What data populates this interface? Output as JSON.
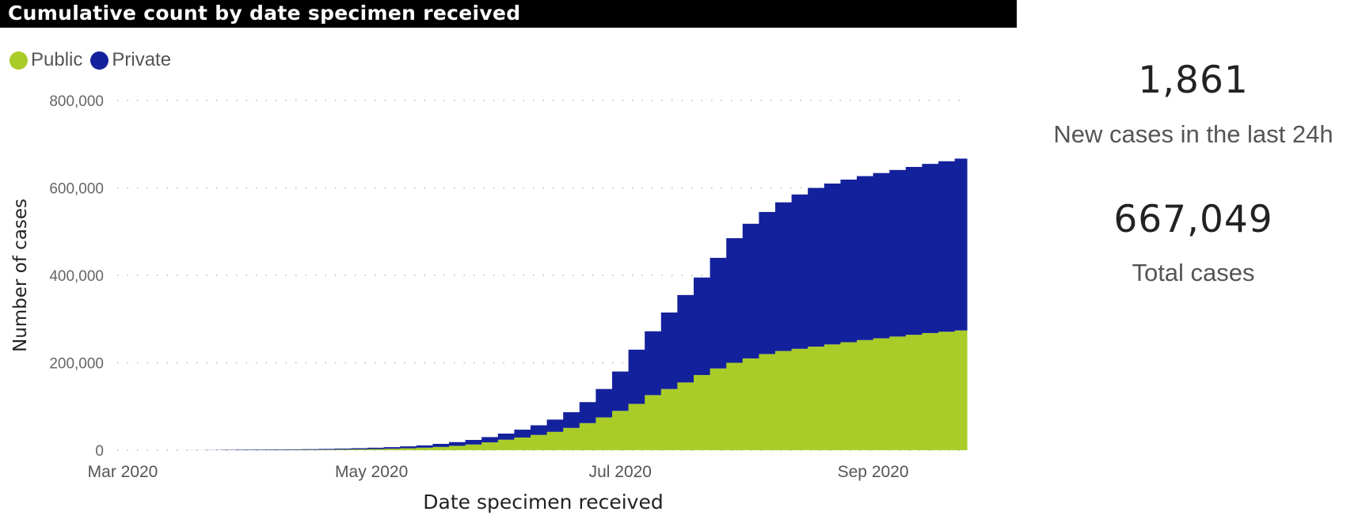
{
  "chart_data": {
    "type": "bar",
    "stacked": true,
    "title": "Cumulative count by date specimen received",
    "xlabel": "Date specimen received",
    "ylabel": "Number of cases",
    "ylim": [
      0,
      800000
    ],
    "yticks": [
      0,
      200000,
      400000,
      600000,
      800000
    ],
    "ytick_labels": [
      "0",
      "200,000",
      "400,000",
      "600,000",
      "800,000"
    ],
    "xlim": [
      "2020-03-01",
      "2020-09-24"
    ],
    "xticks": [
      "2020-03-01",
      "2020-05-01",
      "2020-07-01",
      "2020-09-01"
    ],
    "xtick_labels": [
      "Mar 2020",
      "May 2020",
      "Jul 2020",
      "Sep 2020"
    ],
    "grid": "horizontal-dotted",
    "legend_position": "top-left",
    "x": [
      "2020-03-05",
      "2020-03-09",
      "2020-03-13",
      "2020-03-17",
      "2020-03-21",
      "2020-03-25",
      "2020-03-29",
      "2020-04-02",
      "2020-04-06",
      "2020-04-10",
      "2020-04-14",
      "2020-04-18",
      "2020-04-22",
      "2020-04-26",
      "2020-04-30",
      "2020-05-04",
      "2020-05-08",
      "2020-05-12",
      "2020-05-16",
      "2020-05-20",
      "2020-05-24",
      "2020-05-28",
      "2020-06-01",
      "2020-06-05",
      "2020-06-09",
      "2020-06-13",
      "2020-06-17",
      "2020-06-21",
      "2020-06-25",
      "2020-06-29",
      "2020-07-03",
      "2020-07-07",
      "2020-07-11",
      "2020-07-15",
      "2020-07-19",
      "2020-07-23",
      "2020-07-27",
      "2020-07-31",
      "2020-08-04",
      "2020-08-08",
      "2020-08-12",
      "2020-08-16",
      "2020-08-20",
      "2020-08-24",
      "2020-08-28",
      "2020-09-01",
      "2020-09-05",
      "2020-09-09",
      "2020-09-13",
      "2020-09-17",
      "2020-09-21"
    ],
    "series": [
      {
        "name": "Public",
        "color": "#A9CC29",
        "values": [
          0,
          0,
          5,
          20,
          60,
          150,
          250,
          350,
          500,
          650,
          850,
          1100,
          1500,
          2000,
          2600,
          3400,
          4500,
          5800,
          7500,
          10000,
          13000,
          18000,
          24000,
          29000,
          35000,
          42000,
          51000,
          62000,
          75000,
          90000,
          106000,
          126000,
          140000,
          155000,
          172000,
          187000,
          200000,
          210000,
          220000,
          227000,
          232000,
          237000,
          242000,
          247000,
          252000,
          256000,
          260000,
          264000,
          268000,
          271000,
          274000
        ]
      },
      {
        "name": "Private",
        "color": "#14219C",
        "values": [
          1,
          7,
          45,
          130,
          340,
          750,
          1050,
          1150,
          1250,
          1350,
          1550,
          1900,
          2200,
          2600,
          3100,
          3600,
          4300,
          5200,
          7000,
          8500,
          10500,
          12000,
          14000,
          18000,
          22000,
          28000,
          36000,
          48000,
          65000,
          90000,
          124000,
          146000,
          175000,
          200000,
          223000,
          253000,
          285000,
          308000,
          325000,
          340000,
          353000,
          363000,
          368000,
          372000,
          375000,
          378000,
          381000,
          384000,
          387000,
          390000,
          393049
        ]
      }
    ]
  },
  "legend": {
    "items": [
      {
        "label": "Public",
        "color": "#A9CC29"
      },
      {
        "label": "Private",
        "color": "#14219C"
      }
    ]
  },
  "kpis": {
    "new_cases": {
      "value": "1,861",
      "label": "New cases in the last 24h"
    },
    "total_cases": {
      "value": "667,049",
      "label": "Total cases"
    }
  }
}
